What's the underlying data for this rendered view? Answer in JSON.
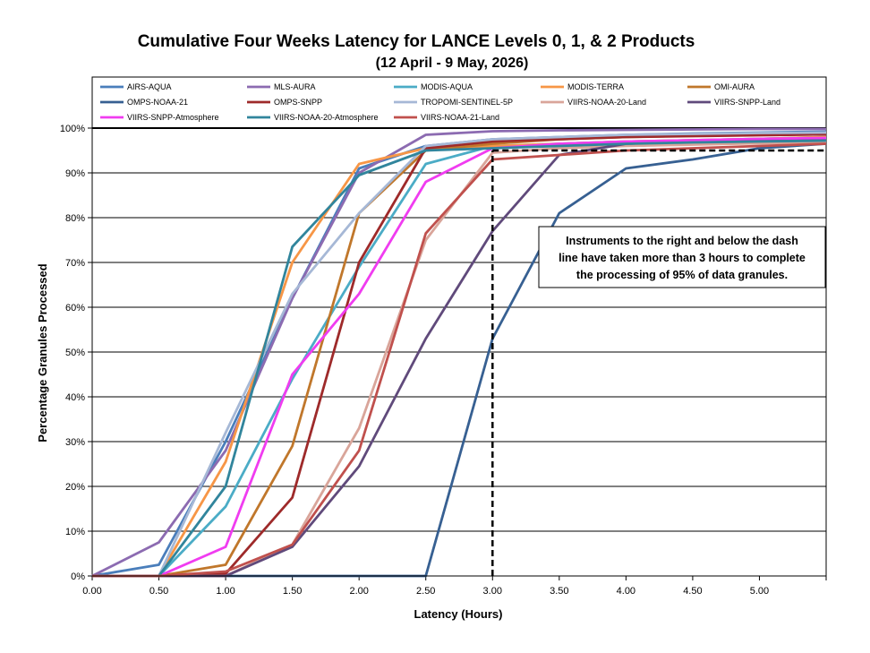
{
  "chart_data": {
    "type": "line",
    "title": "Cumulative Four Weeks Latency  for LANCE Levels 0, 1, & 2 Products",
    "subtitle": "(12  April   -  9  May,  2026)",
    "xlabel": "Latency (Hours)",
    "ylabel": "Percentage Granules Processed",
    "xlim": [
      0,
      5.5
    ],
    "ylim": [
      0,
      100
    ],
    "x_ticks": [
      "0.00",
      "0.50",
      "1.00",
      "1.50",
      "2.00",
      "2.50",
      "3.00",
      "3.50",
      "4.00",
      "4.50",
      "5.00"
    ],
    "y_ticks": [
      "0%",
      "10%",
      "20%",
      "30%",
      "40%",
      "50%",
      "60%",
      "70%",
      "80%",
      "90%",
      "100%"
    ],
    "grid": "horizontal",
    "legend_position": "top",
    "threshold": {
      "x": 3.0,
      "y": 95
    },
    "annotation": [
      "Instruments to the right and below the dash",
      "line have taken more than 3 hours to complete",
      "the processing of 95% of data granules."
    ],
    "series": [
      {
        "name": "AIRS-AQUA",
        "color": "#4a7ebb",
        "x": [
          0,
          0.5,
          1.0,
          1.5,
          2.0,
          2.5,
          3.0,
          3.5,
          4.0,
          4.5,
          5.0,
          5.5
        ],
        "y": [
          0,
          2.5,
          30,
          62,
          91,
          96,
          97.5,
          98,
          98.5,
          98.8,
          99,
          99.2
        ]
      },
      {
        "name": "MLS-AURA",
        "color": "#8c6bb1",
        "x": [
          0,
          0.5,
          1.0,
          1.5,
          2.0,
          2.5,
          3.0,
          3.5,
          4.0,
          4.5,
          5.0,
          5.5
        ],
        "y": [
          0,
          7.5,
          28,
          62,
          90,
          98.5,
          99.3,
          99.5,
          99.6,
          99.7,
          99.8,
          99.8
        ]
      },
      {
        "name": "MODIS-AQUA",
        "color": "#4bacc6",
        "x": [
          0,
          0.5,
          1.0,
          1.5,
          2.0,
          2.5,
          3.0,
          3.5,
          4.0,
          4.5,
          5.0,
          5.5
        ],
        "y": [
          0,
          0,
          15.5,
          44,
          69,
          92,
          96,
          96.5,
          97,
          97.3,
          97.6,
          98
        ]
      },
      {
        "name": "MODIS-TERRA",
        "color": "#f79646",
        "x": [
          0,
          0.5,
          1.0,
          1.5,
          2.0,
          2.5,
          3.0,
          3.5,
          4.0,
          4.5,
          5.0,
          5.5
        ],
        "y": [
          0,
          0,
          25.5,
          70,
          92,
          95.5,
          96,
          96.5,
          97,
          97.3,
          97.6,
          98
        ]
      },
      {
        "name": "OMI-AURA",
        "color": "#c0772b",
        "x": [
          0,
          0.5,
          1.0,
          1.5,
          2.0,
          2.5,
          3.0,
          3.5,
          4.0,
          4.5,
          5.0,
          5.5
        ],
        "y": [
          0,
          0,
          2.5,
          29,
          81,
          95,
          96.5,
          97.5,
          98,
          98.3,
          98.5,
          98.7
        ]
      },
      {
        "name": "OMPS-NOAA-21",
        "color": "#376092",
        "x": [
          0,
          0.5,
          1.0,
          1.5,
          2.0,
          2.5,
          3.0,
          3.5,
          4.0,
          4.5,
          5.0,
          5.5
        ],
        "y": [
          0,
          0,
          0,
          0,
          0,
          0,
          53,
          81,
          91,
          93,
          95.5,
          96.5
        ]
      },
      {
        "name": "OMPS-SNPP",
        "color": "#9e2a2a",
        "x": [
          0,
          0.5,
          1.0,
          1.5,
          2.0,
          2.5,
          3.0,
          3.5,
          4.0,
          4.5,
          5.0,
          5.5
        ],
        "y": [
          0,
          0,
          0.5,
          17.5,
          70,
          95.5,
          97,
          97.5,
          98,
          98.2,
          98.4,
          98.6
        ]
      },
      {
        "name": "TROPOMI-SENTINEL-5P",
        "color": "#a6b8d6",
        "x": [
          0,
          0.5,
          1.0,
          1.5,
          2.0,
          2.5,
          3.0,
          3.5,
          4.0,
          4.5,
          5.0,
          5.5
        ],
        "y": [
          0,
          0,
          32,
          63,
          81,
          96,
          97.5,
          98,
          98.5,
          98.7,
          98.9,
          99
        ]
      },
      {
        "name": "VIIRS-NOAA-20-Land",
        "color": "#d9a59a",
        "x": [
          0,
          0.5,
          1.0,
          1.5,
          2.0,
          2.5,
          3.0,
          3.5,
          4.0,
          4.5,
          5.0,
          5.5
        ],
        "y": [
          0,
          0,
          0,
          7,
          33,
          75,
          94.5,
          95.5,
          96,
          96.3,
          96.6,
          96.8
        ]
      },
      {
        "name": "VIIRS-SNPP-Land",
        "color": "#604a7b",
        "x": [
          0,
          0.5,
          1.0,
          1.5,
          2.0,
          2.5,
          3.0,
          3.5,
          4.0,
          4.5,
          5.0,
          5.5
        ],
        "y": [
          0,
          0,
          0,
          6.5,
          24.5,
          53,
          77,
          94,
          96.5,
          97,
          97.3,
          97.5
        ]
      },
      {
        "name": "VIIRS-SNPP-Atmosphere",
        "color": "#f03cf0",
        "x": [
          0,
          0.5,
          1.0,
          1.5,
          2.0,
          2.5,
          3.0,
          3.5,
          4.0,
          4.5,
          5.0,
          5.5
        ],
        "y": [
          0,
          0,
          6.5,
          45,
          63,
          88,
          95.5,
          96.5,
          97,
          97.3,
          97.6,
          97.8
        ]
      },
      {
        "name": "VIIRS-NOAA-20-Atmosphere",
        "color": "#31859c",
        "x": [
          0,
          0.5,
          1.0,
          1.5,
          2.0,
          2.5,
          3.0,
          3.5,
          4.0,
          4.5,
          5.0,
          5.5
        ],
        "y": [
          0,
          0,
          20,
          73.5,
          89.5,
          95,
          95.5,
          96,
          96.5,
          96.8,
          97,
          97.2
        ]
      },
      {
        "name": "VIIRS-NOAA-21-Land",
        "color": "#c0504d",
        "x": [
          0,
          0.5,
          1.0,
          1.5,
          2.0,
          2.5,
          3.0,
          3.5,
          4.0,
          4.5,
          5.0,
          5.5
        ],
        "y": [
          0,
          0,
          1,
          7,
          28,
          76.5,
          93,
          94,
          95,
          95.5,
          96,
          96.5
        ]
      }
    ]
  }
}
